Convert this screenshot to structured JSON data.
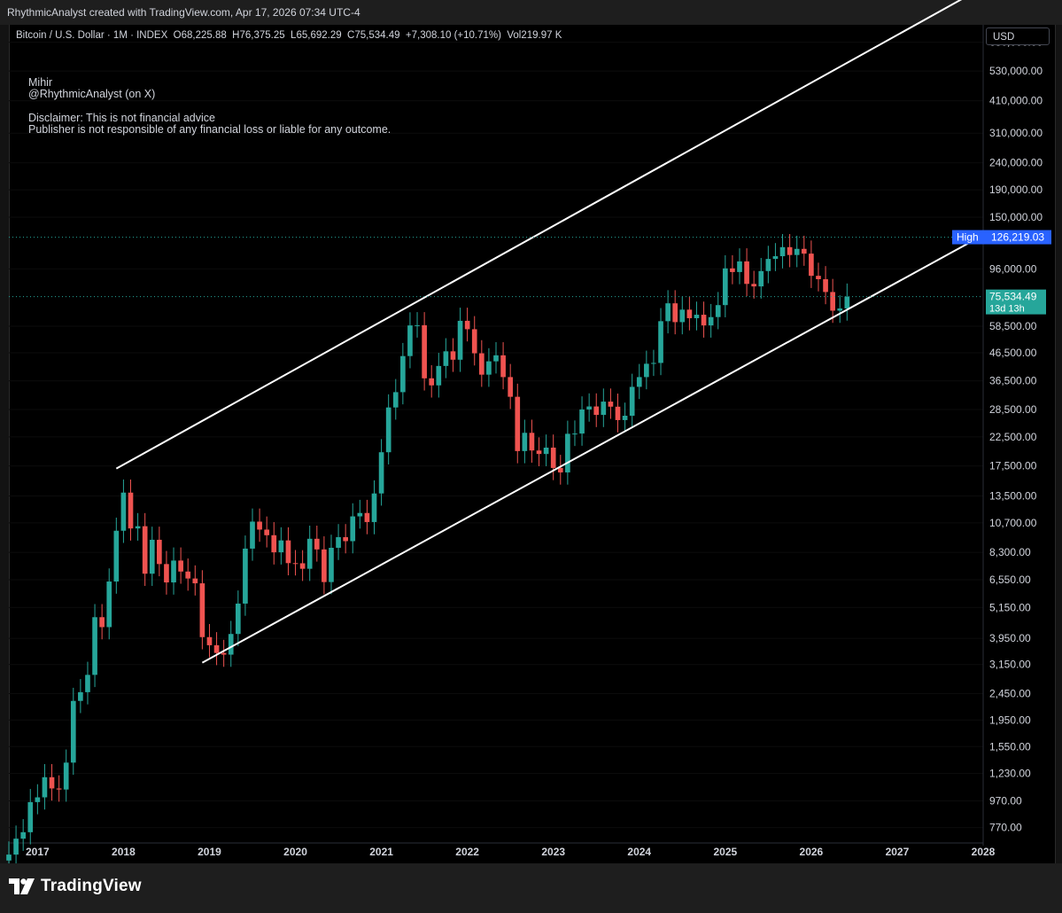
{
  "header": {
    "attribution": "RhythmicAnalyst created with TradingView.com, Apr 17, 2026 07:34 UTC-4"
  },
  "legend": {
    "symbol": "Bitcoin / U.S. Dollar · 1M · INDEX",
    "open_label": "O",
    "open": "68,225.88",
    "high_label": "H",
    "high": "76,375.25",
    "low_label": "L",
    "low": "65,692.29",
    "close_label": "C",
    "close": "75,534.49",
    "change": "+7,308.10 (+10.71%)",
    "vol_label": "Vol",
    "vol": "219.97 K"
  },
  "notes": {
    "name": "Mihir",
    "handle": "@RhythmicAnalyst (on X)",
    "disclaimer1": "Disclaimer: This is not financial advice",
    "disclaimer2": "Publisher is not responsible of any financial loss or liable for any outcome."
  },
  "currency_button": "USD",
  "footer": {
    "logo_text": "TradingView",
    "logo_icon": "tradingview-logo-icon"
  },
  "colors": {
    "up": "#26a69a",
    "down": "#ef5350",
    "channel": "#ffffff",
    "high_badge": "#2962ff",
    "price_badge": "#26a69a"
  },
  "chart_data": {
    "type": "candlestick",
    "scale": "log",
    "ylim": [
      690,
      790000
    ],
    "xlim": [
      "2016-09",
      "2028-01"
    ],
    "x_tick_labels": [
      "2017",
      "2018",
      "2019",
      "2020",
      "2021",
      "2022",
      "2023",
      "2024",
      "2025",
      "2026",
      "2027",
      "2028"
    ],
    "y_tick_labels": [
      "680,000.00",
      "530,000.00",
      "410,000.00",
      "310,000.00",
      "240,000.00",
      "190,000.00",
      "150,000.00",
      "96,000.00",
      "58,500.00",
      "46,500.00",
      "36,500.00",
      "28,500.00",
      "22,500.00",
      "17,500.00",
      "13,500.00",
      "10,700.00",
      "8,300.00",
      "6,550.00",
      "5,150.00",
      "3,950.00",
      "3,150.00",
      "2,450.00",
      "1,950.00",
      "1,550.00",
      "1,230.00",
      "970.00",
      "770.00"
    ],
    "high_marker": {
      "label": "High",
      "value": "126,219.03"
    },
    "last_price": {
      "value": "75,534.49",
      "countdown": "13d 13h"
    },
    "channel": {
      "upper": {
        "from": [
          "2017-12",
          17100
        ],
        "to": [
          "2027-11",
          1020000
        ]
      },
      "lower": {
        "from": [
          "2018-12",
          3200
        ],
        "to": [
          "2027-11",
          120000
        ]
      }
    },
    "candles_monthly_from": "2016-09",
    "closes": [
      610,
      700,
      740,
      960,
      1000,
      1190,
      1080,
      1070,
      1350,
      2300,
      2480,
      2880,
      4740,
      4350,
      6450,
      10000,
      13900,
      10200,
      10400,
      6900,
      9250,
      7500,
      6400,
      7730,
      7030,
      6620,
      6350,
      3990,
      3720,
      3480,
      3430,
      4100,
      5330,
      8570,
      10820,
      10100,
      9620,
      8300,
      9200,
      7560,
      7550,
      7200,
      9330,
      8510,
      6420,
      8630,
      9460,
      9140,
      11320,
      11660,
      10780,
      13800,
      19700,
      29000,
      33100,
      45200,
      58900,
      59000,
      37300,
      35100,
      41500,
      47100,
      43800,
      61300,
      57000,
      46300,
      38500,
      43200,
      45500,
      37700,
      31800,
      19900,
      23300,
      20000,
      19400,
      20500,
      17200,
      16550,
      23100,
      23150,
      28500,
      29250,
      27200,
      30500,
      29200,
      26000,
      27000,
      34650,
      37700,
      42300,
      42600,
      61100,
      71300,
      60600,
      67500,
      62700,
      64600,
      58900,
      63300,
      70200,
      96400,
      93400,
      102400,
      84300,
      82500,
      94200,
      104600,
      107100,
      115800,
      108200,
      114100,
      109500,
      90400,
      87800,
      78600,
      66900,
      68200,
      75534
    ]
  }
}
